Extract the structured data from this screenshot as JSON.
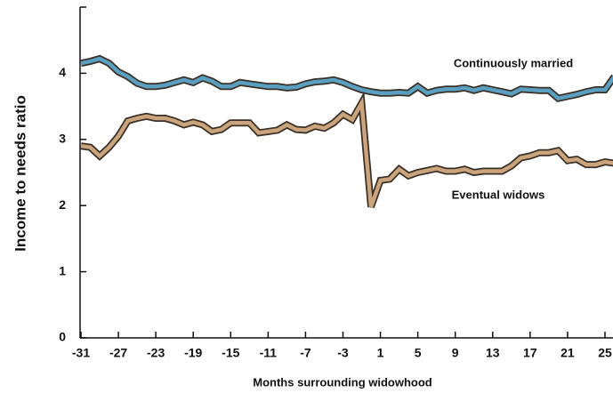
{
  "chart_data": {
    "type": "line",
    "x_label": "Months surrounding widowhood",
    "y_label": "Income to needs ratio",
    "x": [
      -31,
      -30,
      -29,
      -28,
      -27,
      -26,
      -25,
      -24,
      -23,
      -22,
      -21,
      -20,
      -19,
      -18,
      -17,
      -16,
      -15,
      -14,
      -13,
      -12,
      -11,
      -10,
      -9,
      -8,
      -7,
      -6,
      -5,
      -4,
      -3,
      -2,
      -1,
      0,
      1,
      2,
      3,
      4,
      5,
      6,
      7,
      8,
      9,
      10,
      11,
      12,
      13,
      14,
      15,
      16,
      17,
      18,
      19,
      20,
      21,
      22,
      23,
      24,
      25,
      26
    ],
    "series": [
      {
        "name": "Continuously married",
        "color": "#5b9fc0",
        "values": [
          4.15,
          4.18,
          4.22,
          4.15,
          4.02,
          3.95,
          3.85,
          3.8,
          3.8,
          3.82,
          3.86,
          3.9,
          3.86,
          3.93,
          3.88,
          3.8,
          3.8,
          3.86,
          3.84,
          3.82,
          3.8,
          3.8,
          3.78,
          3.79,
          3.84,
          3.87,
          3.88,
          3.9,
          3.86,
          3.8,
          3.75,
          3.72,
          3.7,
          3.7,
          3.71,
          3.7,
          3.8,
          3.7,
          3.74,
          3.76,
          3.76,
          3.78,
          3.74,
          3.78,
          3.75,
          3.72,
          3.69,
          3.76,
          3.75,
          3.74,
          3.74,
          3.62,
          3.65,
          3.68,
          3.72,
          3.75,
          3.75,
          3.95
        ]
      },
      {
        "name": "Eventual widows",
        "color": "#c9a47c",
        "values": [
          2.9,
          2.88,
          2.75,
          2.88,
          3.05,
          3.28,
          3.32,
          3.35,
          3.32,
          3.32,
          3.28,
          3.22,
          3.26,
          3.22,
          3.12,
          3.15,
          3.25,
          3.25,
          3.25,
          3.1,
          3.12,
          3.14,
          3.22,
          3.15,
          3.14,
          3.2,
          3.17,
          3.25,
          3.38,
          3.3,
          3.55,
          1.98,
          2.38,
          2.4,
          2.55,
          2.45,
          2.5,
          2.53,
          2.56,
          2.52,
          2.52,
          2.55,
          2.5,
          2.52,
          2.52,
          2.52,
          2.6,
          2.72,
          2.75,
          2.8,
          2.8,
          2.83,
          2.68,
          2.7,
          2.62,
          2.62,
          2.66,
          2.64
        ]
      }
    ],
    "xlim": [
      -31,
      26
    ],
    "ylim": [
      0,
      5
    ],
    "xticks": [
      -31,
      -27,
      -23,
      -19,
      -15,
      -11,
      -7,
      -3,
      1,
      5,
      9,
      13,
      17,
      21,
      25
    ],
    "yticks": [
      0,
      1,
      2,
      3,
      4
    ],
    "grid": false
  }
}
